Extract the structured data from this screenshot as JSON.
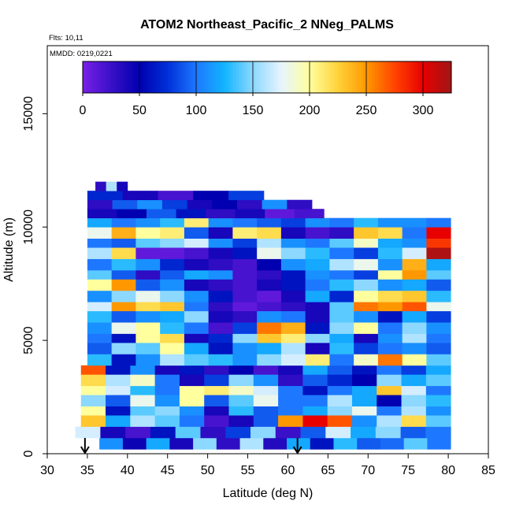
{
  "chart_data": {
    "type": "heatmap",
    "title": "ATOM2 Northeast_Pacific_2 NNeg_PALMS",
    "annotations": [
      "Flts: 10,11",
      "MMDD: 0219,0221"
    ],
    "xlabel": "Latitude (deg N)",
    "ylabel": "Altitude (m)",
    "xlim": [
      30,
      85
    ],
    "ylim": [
      0,
      18000
    ],
    "x_ticks": [
      "30",
      "35",
      "40",
      "45",
      "50",
      "55",
      "60",
      "65",
      "70",
      "75",
      "80",
      "85"
    ],
    "x_tick_values": [
      30,
      35,
      40,
      45,
      50,
      55,
      60,
      65,
      70,
      75,
      80,
      85
    ],
    "y_ticks": [
      "0",
      "5000",
      "10000",
      "15000"
    ],
    "y_tick_values": [
      0,
      5000,
      10000,
      15000
    ],
    "colorbar": {
      "range": [
        0,
        325
      ],
      "tick_labels": [
        "0",
        "50",
        "100",
        "150",
        "200",
        "250",
        "300"
      ],
      "tick_values": [
        0,
        50,
        100,
        150,
        200,
        250,
        300
      ],
      "colors": [
        "#7a1fe6",
        "#3a10c8",
        "#0000b0",
        "#0030d8",
        "#1e78ff",
        "#12b4ff",
        "#8cd8ff",
        "#e6f4ff",
        "#ffff9e",
        "#ffd23a",
        "#ff9800",
        "#ff4400",
        "#e80000",
        "#a01616"
      ]
    },
    "flight_arrows_lat": [
      34.7,
      61.2
    ],
    "altitude_bands": [
      {
        "y0": 200,
        "y1": 700,
        "x0": 36.5,
        "x1": 80.3,
        "values": [
          110,
          45,
          120,
          40,
          150,
          30,
          160,
          35,
          120,
          60,
          130,
          90,
          95,
          140,
          100
        ]
      },
      {
        "y0": 700,
        "y1": 1200,
        "x0": 33.5,
        "x1": 80.3,
        "values": [
          170,
          40,
          20,
          60,
          140,
          30,
          80,
          150,
          25,
          90,
          170,
          120,
          150,
          90,
          100
        ]
      },
      {
        "y0": 1200,
        "y1": 1700,
        "x0": 34.2,
        "x1": 80.3,
        "values": [
          230,
          120,
          160,
          140,
          100,
          20,
          40,
          90,
          250,
          300,
          270,
          110,
          160,
          220,
          140
        ]
      },
      {
        "y0": 1700,
        "y1": 2100,
        "x0": 34.2,
        "x1": 80.3,
        "values": [
          200,
          60,
          140,
          150,
          110,
          40,
          130,
          90,
          100,
          120,
          150,
          180,
          100,
          160,
          110
        ]
      },
      {
        "y0": 2100,
        "y1": 2600,
        "x0": 34.2,
        "x1": 80.3,
        "values": [
          150,
          90,
          180,
          110,
          200,
          90,
          140,
          180,
          100,
          100,
          160,
          120,
          50,
          150,
          130
        ]
      },
      {
        "y0": 2600,
        "y1": 3000,
        "x0": 34.2,
        "x1": 80.3,
        "values": [
          200,
          170,
          130,
          100,
          200,
          210,
          190,
          170,
          100,
          60,
          100,
          120,
          230,
          170,
          100
        ]
      },
      {
        "y0": 3000,
        "y1": 3500,
        "x0": 34.2,
        "x1": 80.3,
        "values": [
          220,
          160,
          190,
          100,
          40,
          80,
          150,
          110,
          30,
          90,
          70,
          50,
          150,
          120,
          140
        ]
      },
      {
        "y0": 3500,
        "y1": 3900,
        "x0": 34.2,
        "x1": 80.3,
        "values": [
          270,
          60,
          110,
          40,
          60,
          30,
          50,
          20,
          40,
          120,
          90,
          60,
          100,
          80,
          120
        ]
      },
      {
        "y0": 3900,
        "y1": 4400,
        "x0": 35.0,
        "x1": 80.3,
        "values": [
          130,
          60,
          110,
          160,
          140,
          130,
          110,
          150,
          170,
          210,
          100,
          190,
          260,
          200,
          140
        ]
      },
      {
        "y0": 4400,
        "y1": 4900,
        "x0": 35.0,
        "x1": 80.3,
        "values": [
          90,
          150,
          140,
          200,
          120,
          60,
          110,
          120,
          160,
          40,
          130,
          80,
          100,
          110,
          90
        ]
      },
      {
        "y0": 4900,
        "y1": 5300,
        "x0": 35.0,
        "x1": 80.3,
        "values": [
          100,
          60,
          200,
          220,
          40,
          70,
          150,
          230,
          210,
          150,
          120,
          40,
          110,
          160,
          100
        ]
      },
      {
        "y0": 5300,
        "y1": 5800,
        "x0": 35.0,
        "x1": 80.3,
        "values": [
          110,
          180,
          200,
          130,
          100,
          20,
          80,
          260,
          240,
          60,
          150,
          200,
          100,
          150,
          110
        ]
      },
      {
        "y0": 5800,
        "y1": 6300,
        "x0": 35.0,
        "x1": 80.3,
        "values": [
          130,
          90,
          110,
          120,
          150,
          40,
          30,
          110,
          100,
          40,
          140,
          110,
          60,
          120,
          80
        ]
      },
      {
        "y0": 6300,
        "y1": 6700,
        "x0": 35.0,
        "x1": 80.3,
        "values": [
          170,
          250,
          220,
          230,
          100,
          30,
          10,
          20,
          30,
          40,
          140,
          260,
          250,
          270,
          180
        ]
      },
      {
        "y0": 6700,
        "y1": 7200,
        "x0": 35.0,
        "x1": 80.3,
        "values": [
          110,
          150,
          180,
          150,
          110,
          60,
          20,
          10,
          40,
          120,
          70,
          200,
          220,
          230,
          130
        ]
      },
      {
        "y0": 7200,
        "y1": 7700,
        "x0": 35.0,
        "x1": 80.3,
        "values": [
          200,
          250,
          90,
          110,
          40,
          30,
          20,
          40,
          60,
          100,
          130,
          150,
          110,
          120,
          90
        ]
      },
      {
        "y0": 7700,
        "y1": 8100,
        "x0": 35.0,
        "x1": 80.3,
        "values": [
          140,
          90,
          30,
          90,
          120,
          110,
          20,
          30,
          60,
          110,
          100,
          80,
          200,
          250,
          140
        ]
      },
      {
        "y0": 8100,
        "y1": 8600,
        "x0": 35.0,
        "x1": 80.3,
        "values": [
          100,
          130,
          110,
          70,
          40,
          30,
          20,
          50,
          110,
          120,
          160,
          180,
          110,
          240,
          120
        ]
      },
      {
        "y0": 8600,
        "y1": 9100,
        "x0": 35.0,
        "x1": 80.3,
        "values": [
          160,
          220,
          10,
          10,
          20,
          40,
          60,
          180,
          150,
          130,
          100,
          80,
          130,
          170,
          320
        ]
      },
      {
        "y0": 9100,
        "y1": 9500,
        "x0": 35.0,
        "x1": 80.3,
        "values": [
          100,
          90,
          140,
          150,
          170,
          110,
          80,
          160,
          110,
          100,
          140,
          190,
          120,
          110,
          280
        ]
      },
      {
        "y0": 9500,
        "y1": 10000,
        "x0": 35.0,
        "x1": 80.3,
        "values": [
          180,
          240,
          200,
          210,
          90,
          40,
          210,
          220,
          40,
          20,
          30,
          230,
          220,
          100,
          300
        ]
      },
      {
        "y0": 10000,
        "y1": 10400,
        "x0": 35.0,
        "x1": 80.3,
        "values": [
          120,
          100,
          110,
          130,
          210,
          110,
          100,
          90,
          80,
          110,
          100,
          130,
          110,
          110,
          100
        ]
      },
      {
        "y0": 10400,
        "y1": 10800,
        "x0": 35.0,
        "x1": 64.5,
        "values": [
          40,
          50,
          90,
          60,
          30,
          40,
          10,
          20
        ]
      },
      {
        "y0": 10800,
        "y1": 11200,
        "x0": 35.0,
        "x1": 63.0,
        "values": [
          30,
          90,
          110,
          80,
          40,
          50,
          30,
          110,
          30
        ]
      },
      {
        "y0": 11200,
        "y1": 11600,
        "x0": 35.0,
        "x1": 57.0,
        "values": [
          70,
          40,
          20,
          50,
          80
        ]
      },
      {
        "y0": 11600,
        "y1": 12000,
        "x0": 36.0,
        "x1": 40.0,
        "values": [
          30,
          160,
          40
        ]
      }
    ]
  }
}
